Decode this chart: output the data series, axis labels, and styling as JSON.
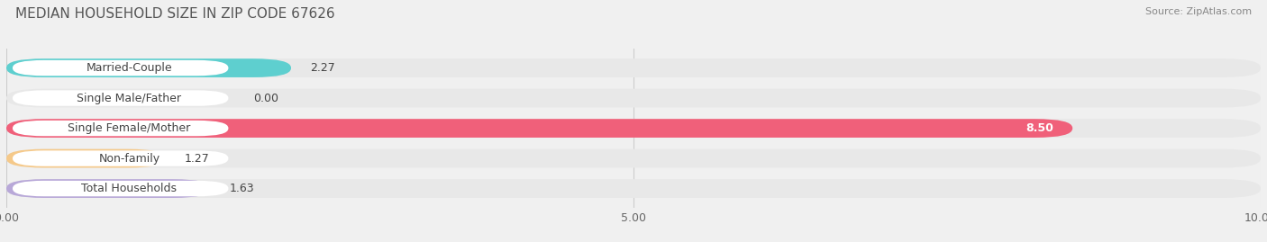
{
  "title": "MEDIAN HOUSEHOLD SIZE IN ZIP CODE 67626",
  "source": "Source: ZipAtlas.com",
  "categories": [
    "Married-Couple",
    "Single Male/Father",
    "Single Female/Mother",
    "Non-family",
    "Total Households"
  ],
  "values": [
    2.27,
    0.0,
    8.5,
    1.27,
    1.63
  ],
  "bar_colors": [
    "#5ecfcf",
    "#a8b8e8",
    "#f0607a",
    "#f5c98a",
    "#b8a8d8"
  ],
  "xlim": [
    0,
    10
  ],
  "xticks": [
    0.0,
    5.0,
    10.0
  ],
  "xtick_labels": [
    "0.00",
    "5.00",
    "10.00"
  ],
  "background_color": "#f0f0f0",
  "bar_bg_color": "#e8e8e8",
  "bar_fg_color_light": "#ffffff",
  "title_fontsize": 11,
  "source_fontsize": 8,
  "label_fontsize": 9,
  "value_fontsize": 9
}
